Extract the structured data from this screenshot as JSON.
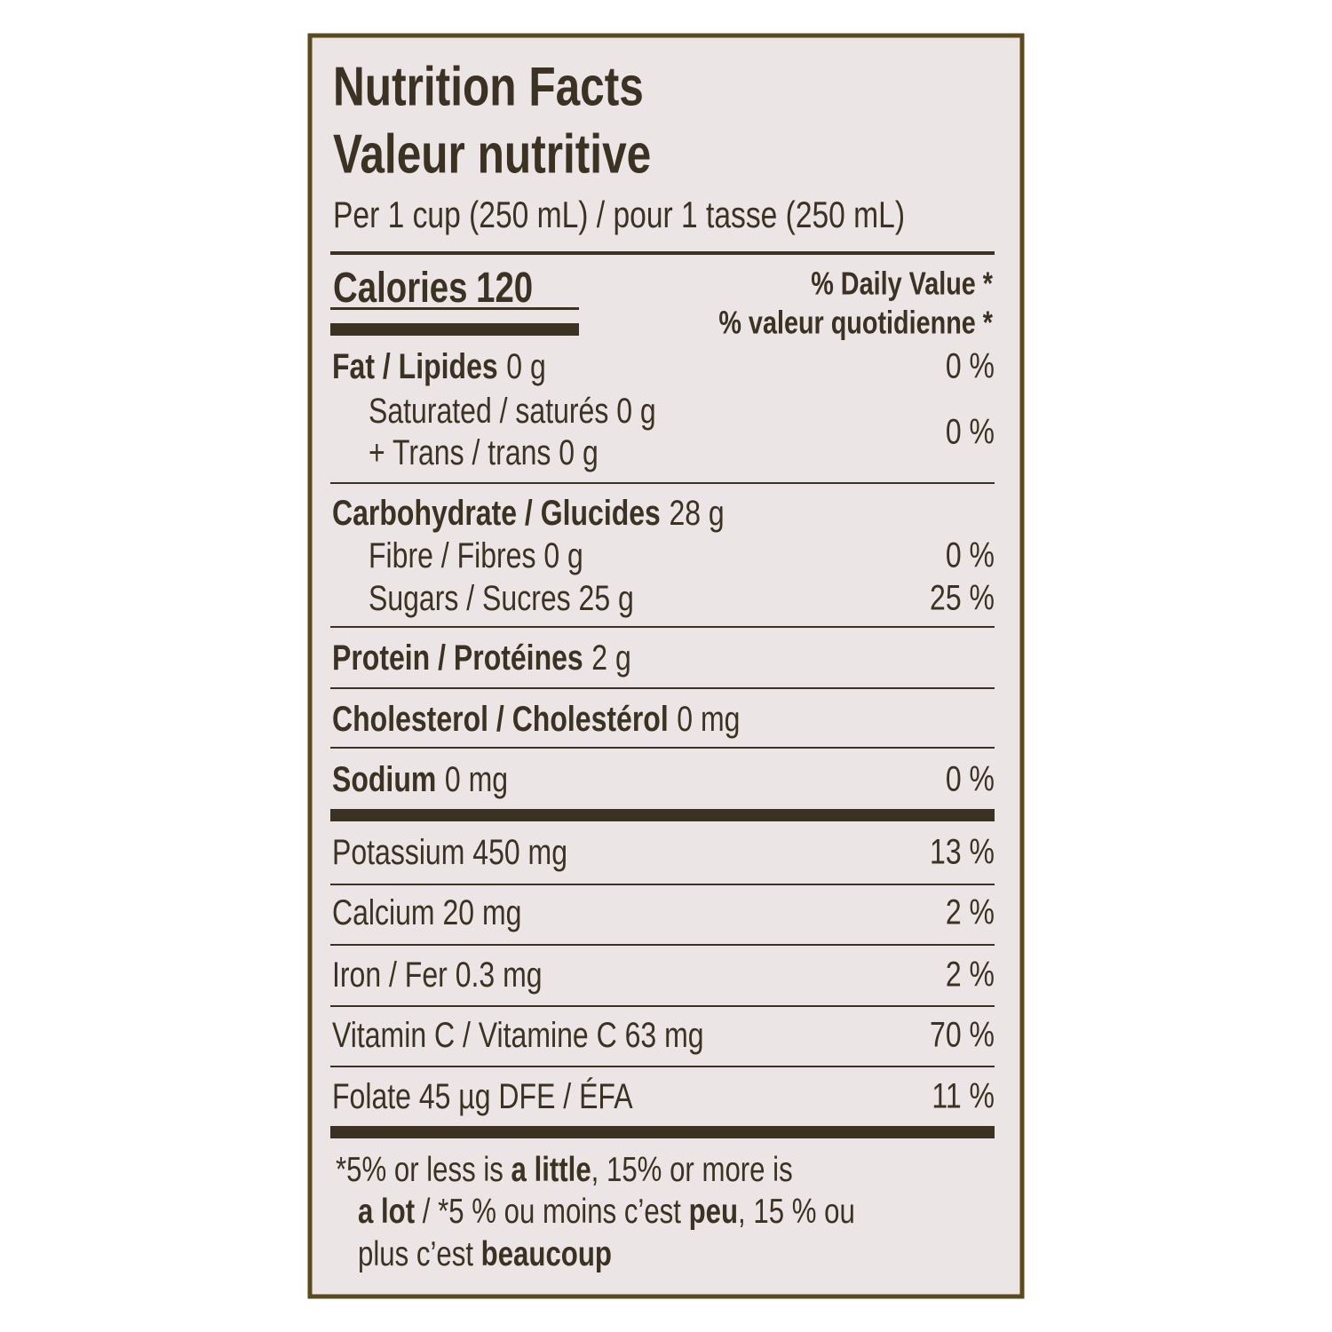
{
  "header": {
    "title_en": "Nutrition Facts",
    "title_fr": "Valeur nutritive",
    "serving": "Per 1 cup (250 mL) / pour 1 tasse (250 mL)"
  },
  "calories": {
    "label": "Calories",
    "amount": "120"
  },
  "daily_value": {
    "en": "% Daily Value *",
    "fr": "% valeur quotidienne *"
  },
  "nutrients": [
    {
      "bold": "Fat / Lipides",
      "text": "0 g",
      "dv": "0 %"
    },
    {
      "text": "Saturated / saturés 0 g"
    },
    {
      "text": "+ Trans / trans 0 g",
      "dv": "0 %"
    },
    {
      "bold": "Carbohydrate / Glucides",
      "text": "28 g"
    },
    {
      "text": "Fibre / Fibres 0 g",
      "dv": "0 %"
    },
    {
      "text": "Sugars / Sucres 25 g",
      "dv": "25 %"
    },
    {
      "bold": "Protein / Protéines",
      "text": "2 g"
    },
    {
      "bold": "Cholesterol / Cholestérol",
      "text": "0 mg"
    },
    {
      "bold": "Sodium",
      "text": "0 mg",
      "dv": "0 %"
    },
    {
      "text": "Potassium 450 mg",
      "dv": "13 %"
    },
    {
      "text": "Calcium 20 mg",
      "dv": "2 %"
    },
    {
      "text": "Iron / Fer 0.3 mg",
      "dv": "2 %"
    },
    {
      "text": "Vitamin C / Vitamine C 63 mg",
      "dv": "70 %"
    },
    {
      "text": "Folate 45 µg DFE / ÉFA",
      "dv": "11 %"
    }
  ],
  "footnote": [
    [
      {
        "text": "*5% or less is ",
        "bold": false
      },
      {
        "text": "a little",
        "bold": true
      },
      {
        "text": ", 15% or more is",
        "bold": false
      }
    ],
    [
      {
        "text": "a lot",
        "bold": true
      },
      {
        "text": " / *5 % ou moins c’est ",
        "bold": false
      },
      {
        "text": "peu",
        "bold": true
      },
      {
        "text": ", 15 % ou",
        "bold": false
      }
    ],
    [
      {
        "text": "plus c’est ",
        "bold": false
      },
      {
        "text": "beaucoup",
        "bold": true
      }
    ]
  ]
}
